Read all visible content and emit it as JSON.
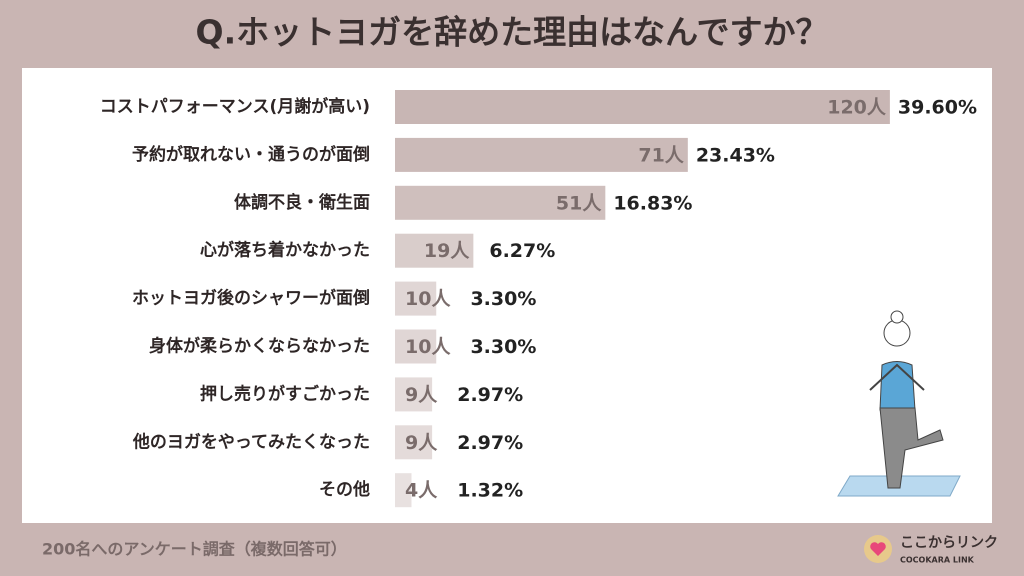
{
  "chart_data": {
    "type": "bar",
    "orientation": "horizontal",
    "title": "Q.ホットヨガを辞めた理由はなんですか？",
    "categories": [
      "コストパフォーマンス(月謝が高い)",
      "予約が取れない・通うのが面倒",
      "体調不良・衛生面",
      "心が落ち着かなかった",
      "ホットヨガ後のシャワーが面倒",
      "身体が柔らかくならなかった",
      "押し売りがすごかった",
      "他のヨガをやってみたくなった",
      "その他"
    ],
    "values": [
      120,
      71,
      51,
      19,
      10,
      10,
      9,
      9,
      4
    ],
    "value_labels": [
      "120人",
      "71人",
      "51人",
      "19人",
      "10人",
      "10人",
      "9人",
      "9人",
      "4人"
    ],
    "percent_values": [
      39.6,
      23.43,
      16.83,
      6.27,
      3.3,
      3.3,
      2.97,
      2.97,
      1.32
    ],
    "percent_labels": [
      "39.60%",
      "23.43%",
      "16.83%",
      "6.27%",
      "3.30%",
      "3.30%",
      "2.97%",
      "2.97%",
      "1.32%"
    ],
    "colors": [
      "#c8b6b4",
      "#cbbab8",
      "#cfbfbd",
      "#d9cdcb",
      "#e0d6d5",
      "#e0d6d5",
      "#e4dbda",
      "#e4dbda",
      "#e8e1e0"
    ],
    "xlim": [
      0,
      145
    ],
    "note": "200名へのアンケート調査（複数回答可）",
    "logo": {
      "name": "ここからリンク",
      "sub": "COCOKARA LINK"
    }
  }
}
